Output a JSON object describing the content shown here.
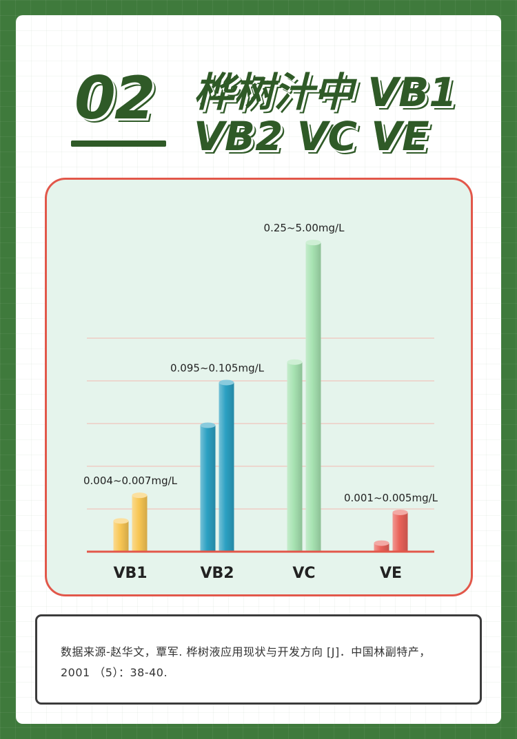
{
  "header": {
    "number": "02",
    "title_line1": "桦树汁中 VB1",
    "title_line2": "VB2 VC VE"
  },
  "chart_data": {
    "type": "bar",
    "categories": [
      "VB1",
      "VB2",
      "VC",
      "VE"
    ],
    "series": [
      {
        "values": [
          0.004,
          0.095,
          0.25,
          0.001
        ]
      },
      {
        "values": [
          0.007,
          0.105,
          5.0,
          0.005
        ]
      }
    ],
    "range_labels": [
      "0.004~0.007mg/L",
      "0.095~0.105mg/L",
      "0.25~5.00mg/L",
      "0.001~0.005mg/L"
    ],
    "bar_colors": [
      "#f8c653",
      "#2ba0c2",
      "#a6e2b1",
      "#e96259"
    ],
    "bar_scale": {
      "note": "bars are illustrative, not to a linear scale",
      "visual_levels": [
        [
          0.18,
          0.33
        ],
        [
          0.74,
          0.99
        ],
        [
          1.11,
          1.81
        ],
        [
          0.05,
          0.23
        ]
      ]
    },
    "grid": true
  },
  "source": {
    "text": "数据来源-赵华文，覃军. 桦树液应用现状与开发方向 [J]．中国林副特产，2001 （5）：38-40."
  },
  "colors": {
    "background": "#3f7a3c",
    "title": "#2f5a27",
    "panel_border": "#e2574a",
    "panel_fill": "#e5f4ec"
  }
}
